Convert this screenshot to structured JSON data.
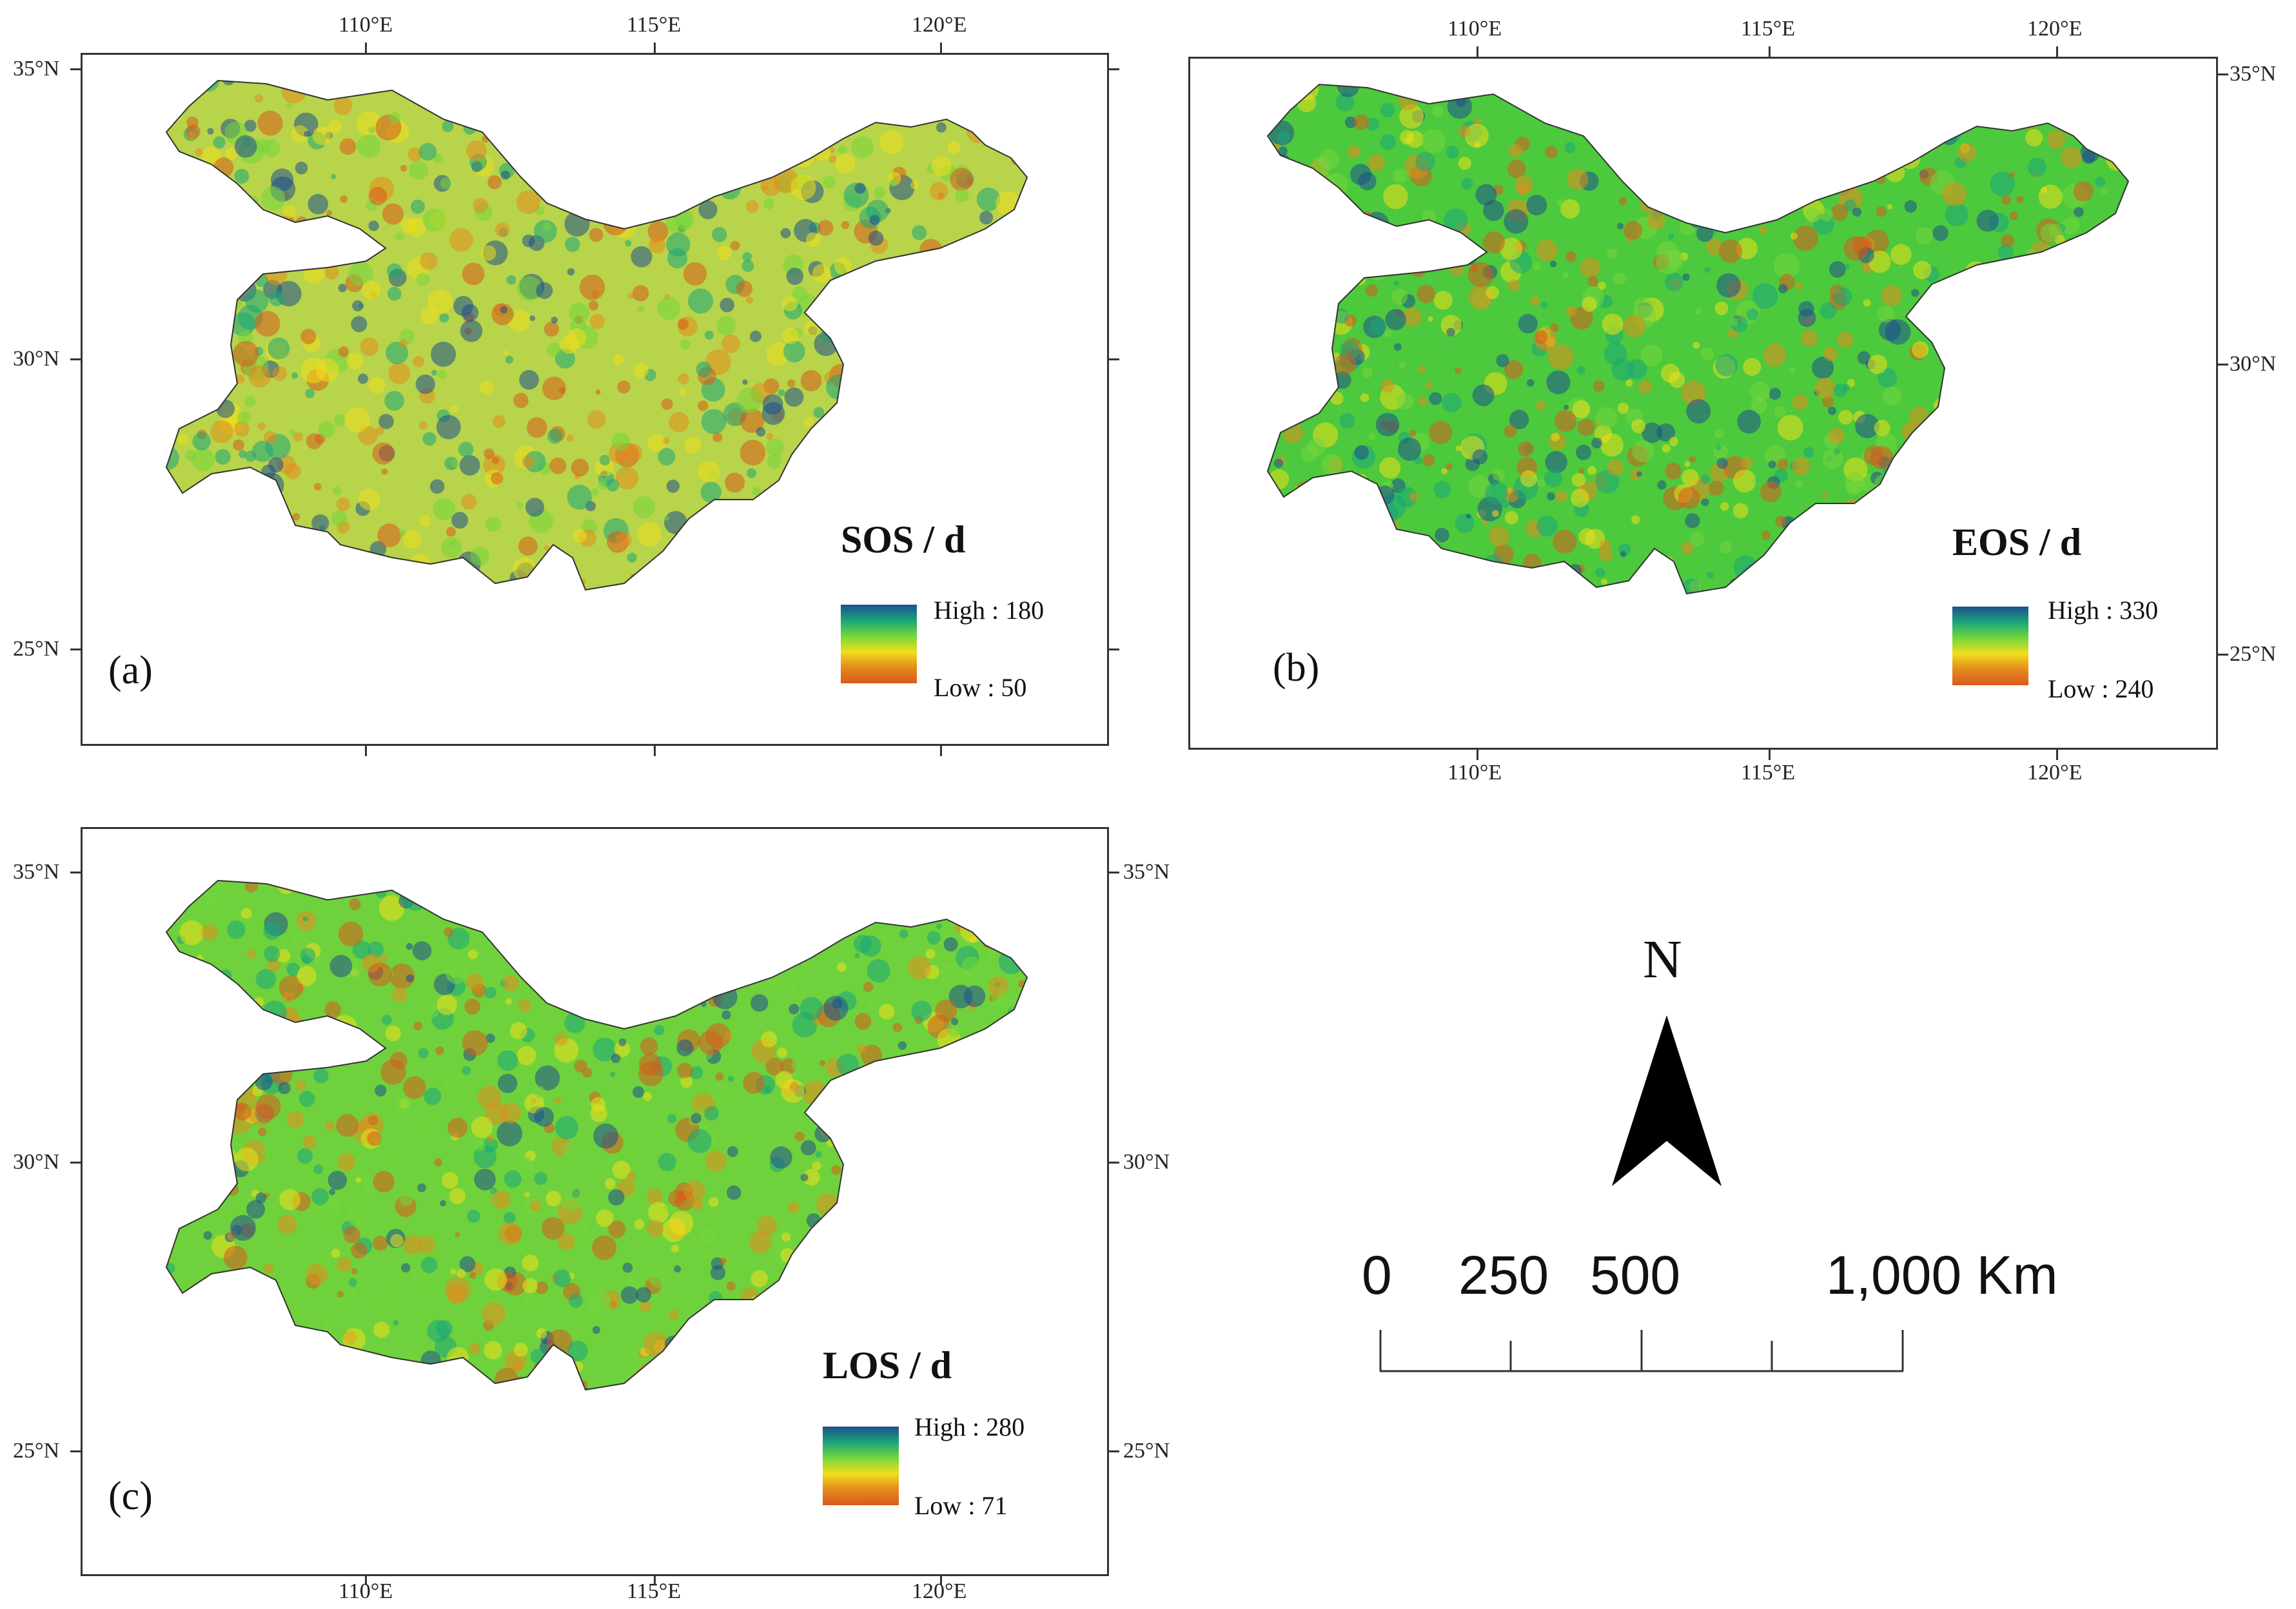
{
  "lon_labels": [
    "110°E",
    "115°E",
    "120°E"
  ],
  "lat_labels": [
    "35°N",
    "30°N",
    "25°N"
  ],
  "panels": [
    {
      "id": "a",
      "label": "(a)",
      "title": "SOS / d",
      "legend_high": "High : 180",
      "legend_low": "Low : 50",
      "palette": [
        "#1e4f8f",
        "#1aa57a",
        "#74d63c",
        "#f0de1c",
        "#e58a1c",
        "#d95a1c"
      ],
      "dominant_fill": "#b7d44a"
    },
    {
      "id": "b",
      "label": "(b)",
      "title": "EOS / d",
      "legend_high": "High : 330",
      "legend_low": "Low : 240",
      "palette": [
        "#1e4f8f",
        "#1aa57a",
        "#74d63c",
        "#f0de1c",
        "#e58a1c",
        "#d95a1c"
      ],
      "dominant_fill": "#4cc93c"
    },
    {
      "id": "c",
      "label": "(c)",
      "title": "LOS / d",
      "legend_high": "High : 280",
      "legend_low": "Low : 71",
      "palette": [
        "#1e4f8f",
        "#1aa57a",
        "#74d63c",
        "#f0de1c",
        "#e58a1c",
        "#d95a1c"
      ],
      "dominant_fill": "#6fd23c"
    }
  ],
  "north_arrow": {
    "letter": "N"
  },
  "scale_bar": {
    "labels": [
      "0",
      "250",
      "500",
      "1,000 Km"
    ]
  }
}
